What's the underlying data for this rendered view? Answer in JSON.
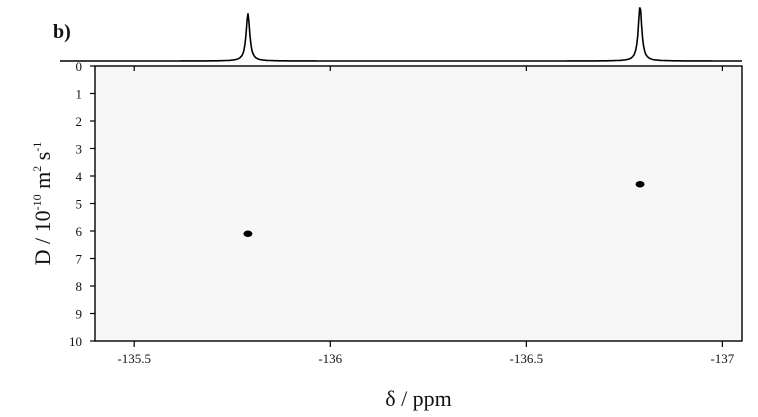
{
  "chart_data": {
    "type": "scatter",
    "panel_label": "b)",
    "title": "",
    "xlabel": "δ / ppm",
    "ylabel": {
      "text": "D / 10",
      "exp1": "-10",
      "unit": " m",
      "exp2": "2",
      "unit2": " s",
      "exp3": "-1"
    },
    "xlim": [
      -135.4,
      -137.05
    ],
    "ylim": [
      0,
      10
    ],
    "x_reversed": true,
    "y_reversed": true,
    "x_ticks": [
      {
        "value": -135.5,
        "label": "-135.5"
      },
      {
        "value": -136,
        "label": "-136"
      },
      {
        "value": -136.5,
        "label": "-136.5"
      },
      {
        "value": -137,
        "label": "-137"
      }
    ],
    "y_ticks": [
      {
        "value": 0,
        "label": "0"
      },
      {
        "value": 1,
        "label": "1"
      },
      {
        "value": 2,
        "label": "2"
      },
      {
        "value": 3,
        "label": "3"
      },
      {
        "value": 4,
        "label": "4"
      },
      {
        "value": 5,
        "label": "5"
      },
      {
        "value": 6,
        "label": "6"
      },
      {
        "value": 7,
        "label": "7"
      },
      {
        "value": 8,
        "label": "8"
      },
      {
        "value": 9,
        "label": "9"
      },
      {
        "value": 10,
        "label": "10"
      }
    ],
    "points": [
      {
        "x": -135.79,
        "y": 6.1
      },
      {
        "x": -136.79,
        "y": 4.3
      }
    ],
    "spectrum_1d": {
      "peaks": [
        {
          "x": -135.79,
          "height": 1.0
        },
        {
          "x": -136.79,
          "height": 1.15
        }
      ]
    },
    "grid": false,
    "colors": {
      "points": "#000000",
      "axes": "#000000",
      "plot_background": "#f7f7f7"
    }
  }
}
